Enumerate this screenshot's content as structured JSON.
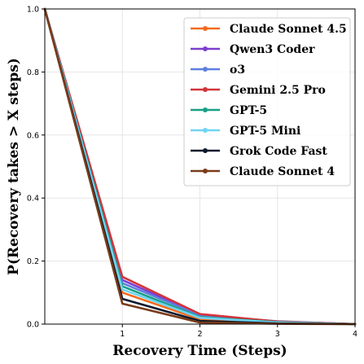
{
  "chart_data": {
    "type": "line",
    "title": "",
    "xlabel": "Recovery Time (Steps)",
    "ylabel": "P(Recovery takes > X steps)",
    "xlim": [
      0,
      4
    ],
    "ylim": [
      0,
      1
    ],
    "xticks": [
      1,
      2,
      3,
      4
    ],
    "yticks": [
      0.0,
      0.2,
      0.4,
      0.6,
      0.8,
      1.0
    ],
    "ytick_labels": [
      "0.0",
      "0.2",
      "0.4",
      "0.6",
      "0.8",
      "1.0"
    ],
    "grid": true,
    "legend_position": "top-right",
    "x": [
      0,
      1,
      2,
      3,
      4
    ],
    "series": [
      {
        "name": "Claude Sonnet 4.5",
        "color": "#f26b1d",
        "values": [
          1.0,
          0.1,
          0.015,
          0.004,
          0.0
        ]
      },
      {
        "name": "Qwen3 Coder",
        "color": "#7b3fd0",
        "values": [
          1.0,
          0.14,
          0.03,
          0.008,
          0.0
        ]
      },
      {
        "name": "o3",
        "color": "#5c7fe0",
        "values": [
          1.0,
          0.13,
          0.028,
          0.009,
          0.0
        ]
      },
      {
        "name": "Gemini 2.5 Pro",
        "color": "#d3343a",
        "values": [
          1.0,
          0.15,
          0.032,
          0.008,
          0.0
        ]
      },
      {
        "name": "GPT-5",
        "color": "#16a085",
        "values": [
          1.0,
          0.12,
          0.022,
          0.006,
          0.0
        ]
      },
      {
        "name": "GPT-5 Mini",
        "color": "#6fd4f2",
        "values": [
          1.0,
          0.11,
          0.02,
          0.005,
          0.0
        ]
      },
      {
        "name": "Grok Code Fast",
        "color": "#0b1a2c",
        "values": [
          1.0,
          0.08,
          0.01,
          0.002,
          0.0
        ]
      },
      {
        "name": "Claude Sonnet 4",
        "color": "#7a3b1a",
        "values": [
          1.0,
          0.065,
          0.005,
          0.001,
          0.0
        ]
      }
    ]
  }
}
